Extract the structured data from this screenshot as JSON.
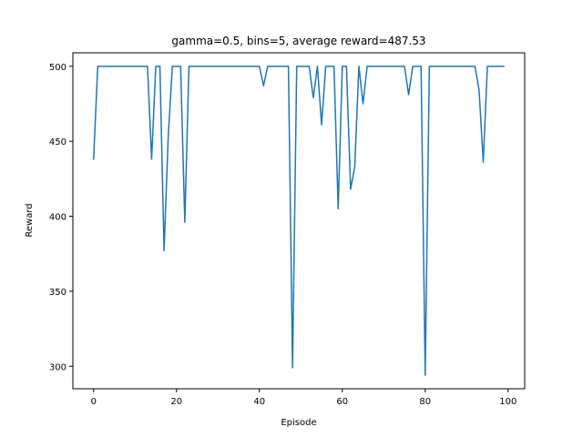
{
  "chart_data": {
    "type": "line",
    "title": "gamma=0.5, bins=5, average reward=487.53",
    "xlabel": "Episode",
    "ylabel": "Reward",
    "xlim": [
      -5,
      104
    ],
    "ylim": [
      285,
      509
    ],
    "xticks": [
      0,
      20,
      40,
      60,
      80,
      100
    ],
    "yticks": [
      300,
      350,
      400,
      450,
      500
    ],
    "grid": false,
    "color": "#1f77b4",
    "series": [
      {
        "x": [
          0,
          1,
          2,
          3,
          4,
          5,
          6,
          7,
          8,
          9,
          10,
          11,
          12,
          13,
          14,
          15,
          16,
          17,
          18,
          19,
          20,
          21,
          22,
          23,
          24,
          25,
          26,
          27,
          28,
          29,
          30,
          31,
          32,
          33,
          34,
          35,
          36,
          37,
          38,
          39,
          40,
          41,
          42,
          43,
          44,
          45,
          46,
          47,
          48,
          49,
          50,
          51,
          52,
          53,
          54,
          55,
          56,
          57,
          58,
          59,
          60,
          61,
          62,
          63,
          64,
          65,
          66,
          67,
          68,
          69,
          70,
          71,
          72,
          73,
          74,
          75,
          76,
          77,
          78,
          79,
          80,
          81,
          82,
          83,
          84,
          85,
          86,
          87,
          88,
          89,
          90,
          91,
          92,
          93,
          94,
          95,
          96,
          97,
          98,
          99
        ],
        "values": [
          438,
          500,
          500,
          500,
          500,
          500,
          500,
          500,
          500,
          500,
          500,
          500,
          500,
          500,
          438,
          500,
          500,
          377,
          453,
          500,
          500,
          500,
          396,
          500,
          500,
          500,
          500,
          500,
          500,
          500,
          500,
          500,
          500,
          500,
          500,
          500,
          500,
          500,
          500,
          500,
          500,
          487,
          500,
          500,
          500,
          500,
          500,
          500,
          299,
          500,
          500,
          500,
          500,
          479,
          500,
          461,
          500,
          500,
          500,
          405,
          500,
          500,
          418,
          433,
          500,
          475,
          500,
          500,
          500,
          500,
          500,
          500,
          500,
          500,
          500,
          500,
          481,
          500,
          500,
          500,
          294,
          500,
          500,
          500,
          500,
          500,
          500,
          500,
          500,
          500,
          500,
          500,
          500,
          484,
          436,
          500,
          500,
          500,
          500,
          500
        ]
      }
    ]
  }
}
